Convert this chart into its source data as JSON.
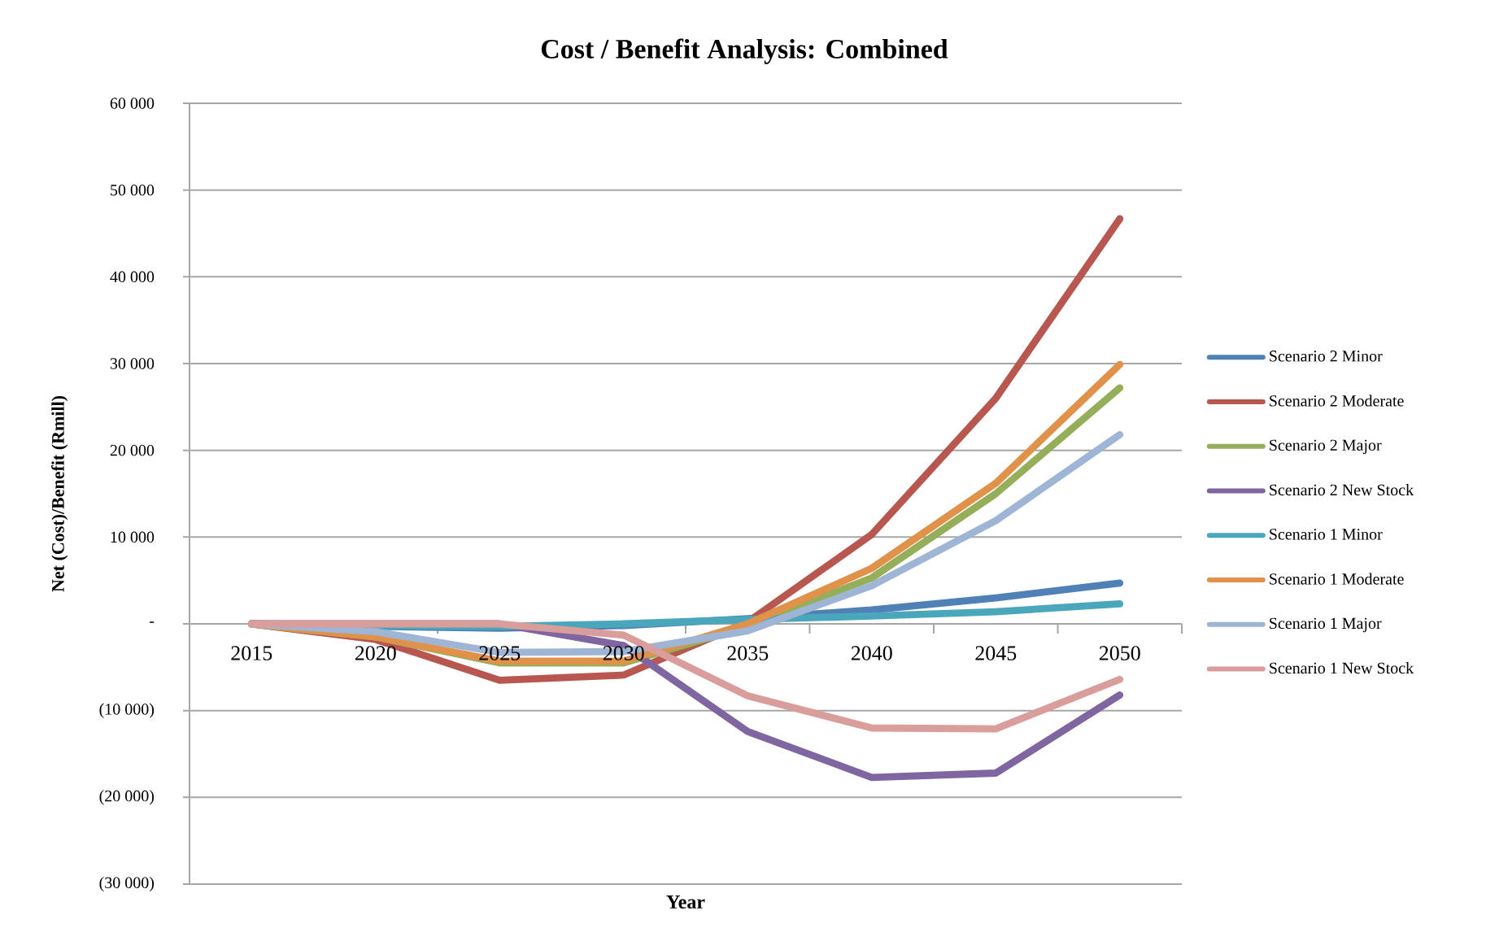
{
  "chart_data": {
    "type": "line",
    "title": "Cost / Benefit Analysis: Combined",
    "xlabel": "Year",
    "ylabel": "Net (Cost)/Benefit (Rmill)",
    "categories": [
      "2015",
      "2020",
      "2025",
      "2030",
      "2035",
      "2040",
      "2045",
      "2050"
    ],
    "ylim": [
      -30000,
      60000
    ],
    "yticks": [
      {
        "value": -30000,
        "label": "(30 000)"
      },
      {
        "value": -20000,
        "label": "(20 000)"
      },
      {
        "value": -10000,
        "label": "(10 000)"
      },
      {
        "value": 0,
        "label": "-"
      },
      {
        "value": 10000,
        "label": "10 000"
      },
      {
        "value": 20000,
        "label": "20 000"
      },
      {
        "value": 30000,
        "label": "30 000"
      },
      {
        "value": 40000,
        "label": "40 000"
      },
      {
        "value": 50000,
        "label": "50 000"
      },
      {
        "value": 60000,
        "label": "60 000"
      }
    ],
    "grid": "y",
    "legend": "right",
    "marker": "none",
    "line_style": "solid",
    "series": [
      {
        "name": "Scenario 2 Minor",
        "color": "#4f81b6",
        "values": [
          0,
          -300,
          -500,
          -200,
          600,
          1600,
          3000,
          4700
        ]
      },
      {
        "name": "Scenario 2 Moderate",
        "color": "#b85750",
        "values": [
          0,
          -1800,
          -6500,
          -5900,
          200,
          10300,
          26000,
          46700
        ]
      },
      {
        "name": "Scenario 2 Major",
        "color": "#94ae5a",
        "values": [
          0,
          -1500,
          -4500,
          -4500,
          -300,
          5300,
          15000,
          27200
        ]
      },
      {
        "name": "Scenario 2 New Stock",
        "color": "#8066a0",
        "values": [
          0,
          0,
          0,
          -2500,
          -12400,
          -17700,
          -17200,
          -8200
        ]
      },
      {
        "name": "Scenario 1 Minor",
        "color": "#4aa7bb",
        "values": [
          0,
          -200,
          -300,
          0,
          500,
          900,
          1400,
          2300
        ]
      },
      {
        "name": "Scenario 1 Moderate",
        "color": "#e0924a",
        "values": [
          0,
          -1500,
          -4300,
          -4300,
          0,
          6400,
          16200,
          29900
        ]
      },
      {
        "name": "Scenario 1 Major",
        "color": "#9eb5d5",
        "values": [
          0,
          -900,
          -3300,
          -3200,
          -800,
          4400,
          11900,
          21800
        ]
      },
      {
        "name": "Scenario 1 New Stock",
        "color": "#d99d9b",
        "values": [
          0,
          0,
          0,
          -1300,
          -8300,
          -12000,
          -12100,
          -6400
        ]
      }
    ]
  }
}
